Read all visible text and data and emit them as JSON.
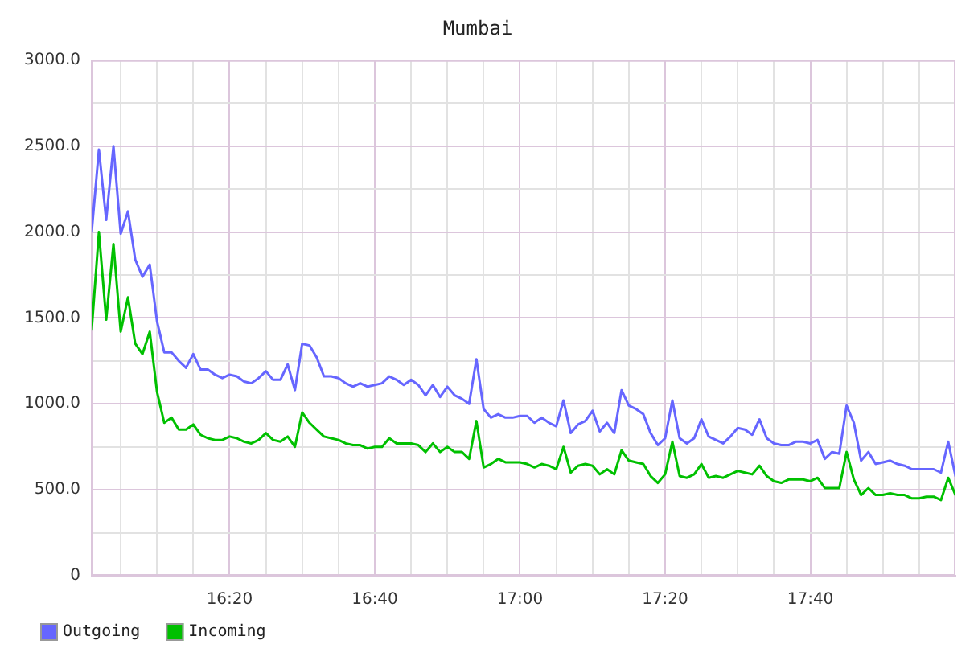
{
  "chart_data": {
    "type": "line",
    "title": "Mumbai",
    "x": [
      16.0167,
      16.0333,
      16.05,
      16.0667,
      16.0833,
      16.1,
      16.1167,
      16.1333,
      16.15,
      16.1667,
      16.1833,
      16.2,
      16.2167,
      16.2333,
      16.25,
      16.2667,
      16.2833,
      16.3,
      16.3167,
      16.3333,
      16.35,
      16.3667,
      16.3833,
      16.4,
      16.4167,
      16.4333,
      16.45,
      16.4667,
      16.4833,
      16.5,
      16.5167,
      16.5333,
      16.55,
      16.5667,
      16.5833,
      16.6,
      16.6167,
      16.6333,
      16.65,
      16.6667,
      16.6833,
      16.7,
      16.7167,
      16.7333,
      16.75,
      16.7667,
      16.7833,
      16.8,
      16.8167,
      16.8333,
      16.85,
      16.8667,
      16.8833,
      16.9,
      16.9167,
      16.9333,
      16.95,
      16.9667,
      16.9833,
      17,
      17.0167,
      17.0333,
      17.05,
      17.0667,
      17.0833,
      17.1,
      17.1167,
      17.1333,
      17.15,
      17.1667,
      17.1833,
      17.2,
      17.2167,
      17.2333,
      17.25,
      17.2667,
      17.2833,
      17.3,
      17.3167,
      17.3333,
      17.35,
      17.3667,
      17.3833,
      17.4,
      17.4167,
      17.4333,
      17.45,
      17.4667,
      17.4833,
      17.5,
      17.5167,
      17.5333,
      17.55,
      17.5667,
      17.5833,
      17.6,
      17.6167,
      17.6333,
      17.65,
      17.6667,
      17.6833,
      17.7,
      17.7167,
      17.7333,
      17.75,
      17.7667,
      17.7833,
      17.8,
      17.8167,
      17.8333,
      17.85,
      17.8667,
      17.8833,
      17.9,
      17.9167,
      17.9333,
      17.95,
      17.9667,
      17.9833,
      18
    ],
    "series": [
      {
        "name": "Outgoing",
        "color": "#6666ff",
        "values": [
          2000,
          2480,
          2070,
          2500,
          1990,
          2120,
          1840,
          1740,
          1810,
          1480,
          1300,
          1300,
          1250,
          1210,
          1290,
          1200,
          1200,
          1170,
          1150,
          1170,
          1160,
          1130,
          1120,
          1150,
          1190,
          1140,
          1140,
          1230,
          1080,
          1350,
          1340,
          1270,
          1160,
          1160,
          1150,
          1120,
          1100,
          1120,
          1100,
          1110,
          1120,
          1160,
          1140,
          1110,
          1140,
          1110,
          1050,
          1110,
          1040,
          1100,
          1050,
          1030,
          1000,
          1260,
          970,
          920,
          940,
          920,
          920,
          930,
          930,
          890,
          920,
          890,
          870,
          1020,
          830,
          880,
          900,
          960,
          840,
          890,
          830,
          1080,
          990,
          970,
          940,
          830,
          760,
          800,
          1020,
          800,
          770,
          800,
          910,
          810,
          790,
          770,
          810,
          860,
          850,
          820,
          910,
          800,
          770,
          760,
          760,
          780,
          780,
          770,
          790,
          680,
          720,
          710,
          990,
          890,
          670,
          720,
          650,
          660,
          670,
          650,
          640,
          620,
          620,
          620,
          620,
          600,
          780,
          580
        ]
      },
      {
        "name": "Incoming",
        "color": "#00c000",
        "values": [
          1430,
          2000,
          1490,
          1930,
          1420,
          1620,
          1350,
          1290,
          1420,
          1070,
          890,
          920,
          850,
          850,
          880,
          820,
          800,
          790,
          790,
          810,
          800,
          780,
          770,
          790,
          830,
          790,
          780,
          810,
          750,
          950,
          890,
          850,
          810,
          800,
          790,
          770,
          760,
          760,
          740,
          750,
          750,
          800,
          770,
          770,
          770,
          760,
          720,
          770,
          720,
          750,
          720,
          720,
          680,
          900,
          630,
          650,
          680,
          660,
          660,
          660,
          650,
          630,
          650,
          640,
          620,
          750,
          600,
          640,
          650,
          640,
          590,
          620,
          590,
          730,
          670,
          660,
          650,
          580,
          540,
          590,
          780,
          580,
          570,
          590,
          650,
          570,
          580,
          570,
          590,
          610,
          600,
          590,
          640,
          580,
          550,
          540,
          560,
          560,
          560,
          550,
          570,
          510,
          510,
          510,
          720,
          560,
          470,
          510,
          470,
          470,
          480,
          470,
          470,
          450,
          450,
          460,
          460,
          440,
          570,
          470
        ]
      }
    ],
    "xlim": [
      16.0167,
      18
    ],
    "xticks": [
      {
        "value": 16.0833,
        "label": null
      },
      {
        "value": 16.1667,
        "label": null
      },
      {
        "value": 16.25,
        "label": null
      },
      {
        "value": 16.3333,
        "label": "16:20"
      },
      {
        "value": 16.4167,
        "label": null
      },
      {
        "value": 16.5,
        "label": null
      },
      {
        "value": 16.5833,
        "label": null
      },
      {
        "value": 16.6667,
        "label": "16:40"
      },
      {
        "value": 16.75,
        "label": null
      },
      {
        "value": 16.8333,
        "label": null
      },
      {
        "value": 16.9167,
        "label": null
      },
      {
        "value": 17,
        "label": "17:00"
      },
      {
        "value": 17.0833,
        "label": null
      },
      {
        "value": 17.1667,
        "label": null
      },
      {
        "value": 17.25,
        "label": null
      },
      {
        "value": 17.3333,
        "label": "17:20"
      },
      {
        "value": 17.4167,
        "label": null
      },
      {
        "value": 17.5,
        "label": null
      },
      {
        "value": 17.5833,
        "label": null
      },
      {
        "value": 17.6667,
        "label": "17:40"
      },
      {
        "value": 17.75,
        "label": null
      },
      {
        "value": 17.8333,
        "label": null
      },
      {
        "value": 17.9167,
        "label": null
      }
    ],
    "ylim": [
      0,
      3000
    ],
    "yticks": [
      0,
      {
        "value": 250,
        "label": null
      },
      {
        "value": 500,
        "label": "500.0"
      },
      {
        "value": 750,
        "label": null
      },
      {
        "value": 1000,
        "label": "1000.0"
      },
      {
        "value": 1250,
        "label": null
      },
      {
        "value": 1500,
        "label": "1500.0"
      },
      {
        "value": 1750,
        "label": null
      },
      {
        "value": 2000,
        "label": "2000.0"
      },
      {
        "value": 2250,
        "label": null
      },
      {
        "value": 2500,
        "label": "2500.0"
      },
      {
        "value": 2750,
        "label": null
      },
      {
        "value": 3000,
        "label": "3000.0"
      }
    ],
    "grid": true,
    "legend": "bottom left"
  }
}
